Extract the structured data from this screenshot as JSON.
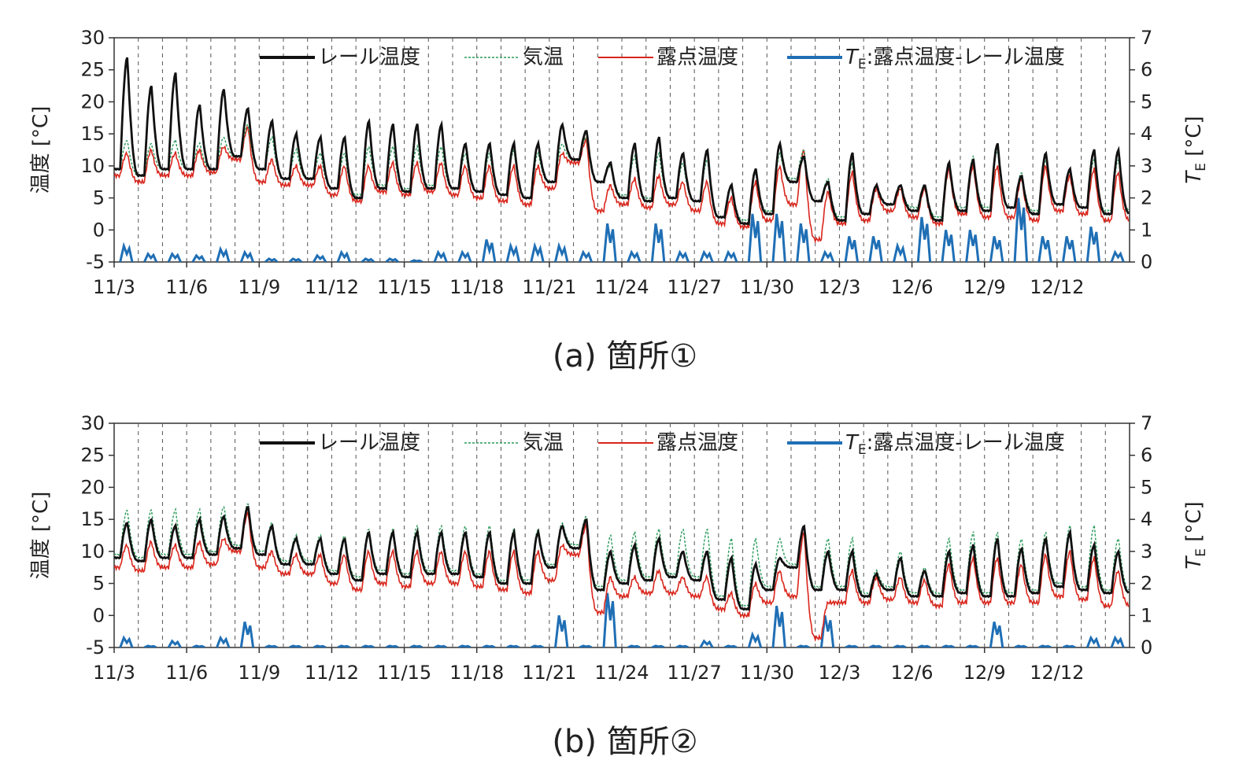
{
  "chart_data": [
    {
      "type": "line",
      "caption": "(a) 箇所①",
      "ylabel_left": "温度 [°C]",
      "ylabel_right": "T_E [°C]",
      "ylim_left": [
        -5,
        30
      ],
      "ylim_right": [
        0,
        7
      ],
      "yticks_left": [
        "30",
        "25",
        "20",
        "15",
        "10",
        "5",
        "0",
        "-5"
      ],
      "yticks_right": [
        "7",
        "6",
        "5",
        "4",
        "3",
        "2",
        "1",
        "0"
      ],
      "x_ticklabels": [
        "11/3",
        "11/6",
        "11/9",
        "11/12",
        "11/15",
        "11/18",
        "11/21",
        "11/24",
        "11/27",
        "11/30",
        "12/3",
        "12/6",
        "12/9",
        "12/12"
      ],
      "x_start": "11/3",
      "x_end": "12/14",
      "grid": "vertical dashed lines at each day",
      "legend_placement": "top",
      "legend": [
        {
          "label": "レール温度",
          "color": "#111111",
          "style": "solid-thick"
        },
        {
          "label": "気温",
          "color": "#2a9a5a",
          "style": "dashed"
        },
        {
          "label": "露点温度",
          "color": "#d9261c",
          "style": "solid"
        },
        {
          "label_italic": "T",
          "label_sub": "E",
          "label_rest": ":露点温度-レール温度",
          "color": "#1f6fb5",
          "style": "solid-thick"
        }
      ],
      "series": [
        {
          "name": "レール温度",
          "axis": "left",
          "daily_max": [
            27,
            22.5,
            24.5,
            19.5,
            22,
            19,
            17,
            15,
            14.5,
            14.5,
            17,
            16.5,
            16.5,
            16.5,
            13.5,
            13.5,
            13.5,
            13.5,
            16.5,
            15.5,
            10.5,
            13.5,
            14.5,
            12,
            12.5,
            7,
            9.5,
            13.5,
            11.5,
            7.5,
            12,
            7,
            7,
            7,
            10.5,
            11,
            13.5,
            8.5,
            12,
            9.5,
            12.5,
            12.5
          ],
          "daily_min": [
            9.5,
            8.5,
            9.5,
            9.5,
            9.5,
            11.5,
            9.5,
            8.0,
            8.0,
            6.5,
            5.0,
            6.5,
            6.0,
            6.5,
            6.5,
            6.0,
            5.5,
            5.0,
            7.5,
            11.0,
            7.5,
            5.0,
            4.5,
            5.0,
            4.5,
            2.0,
            1.0,
            2.5,
            7.5,
            4.5,
            1.5,
            2.5,
            4.0,
            3.0,
            1.5,
            3.0,
            3.0,
            3.5,
            2.5,
            4.0,
            3.5,
            2.5
          ]
        },
        {
          "name": "気温",
          "axis": "left",
          "daily_max": [
            14,
            13.5,
            14,
            13.5,
            14.5,
            16.5,
            14.5,
            12.5,
            12,
            12,
            13,
            13,
            13,
            13,
            12,
            12,
            12.5,
            12,
            13.5,
            14.5,
            10,
            11.5,
            12,
            10.5,
            11,
            7,
            9,
            12,
            12.5,
            8,
            10.5,
            7,
            7,
            7,
            10.5,
            11.5,
            12.5,
            9,
            11,
            9.5,
            11,
            11
          ],
          "daily_min": [
            9.5,
            8.5,
            9.5,
            9.5,
            9.5,
            11.5,
            9.5,
            8.0,
            8.0,
            6.5,
            5.5,
            7.0,
            6.5,
            7.0,
            6.5,
            6.0,
            5.5,
            5.0,
            7.5,
            11.0,
            7.5,
            5.5,
            5.0,
            5.0,
            4.5,
            2.0,
            1.5,
            3.0,
            8.0,
            4.5,
            2.0,
            2.5,
            4.0,
            3.5,
            2.0,
            3.5,
            3.5,
            3.5,
            3.0,
            4.0,
            3.5,
            3.0
          ]
        },
        {
          "name": "露点温度",
          "axis": "left",
          "daily_max": [
            12,
            12.5,
            12,
            12.5,
            13,
            16,
            11,
            10,
            10,
            10,
            10,
            10.5,
            10.5,
            10.5,
            10,
            10,
            10,
            10,
            12,
            14,
            7,
            8,
            8.5,
            7.5,
            7.5,
            5,
            7.5,
            10,
            12.5,
            6,
            9,
            6.5,
            6.5,
            6.5,
            9.5,
            10,
            10,
            8,
            10,
            8.5,
            9.5,
            9
          ],
          "daily_min": [
            8.5,
            7.5,
            8.5,
            8.5,
            9.0,
            11.0,
            7.5,
            7.0,
            7.0,
            5.5,
            4.5,
            6.0,
            5.5,
            6.0,
            5.5,
            5.0,
            4.5,
            4.0,
            6.5,
            10.5,
            3.0,
            4.0,
            3.5,
            4.0,
            3.0,
            1.0,
            0.5,
            1.5,
            4.0,
            -1.5,
            1.0,
            1.5,
            3.0,
            2.0,
            1.0,
            2.5,
            2.0,
            2.0,
            1.5,
            3.0,
            2.5,
            1.5
          ]
        },
        {
          "name": "T_E:露点温度-レール温度",
          "axis": "right",
          "daily_peak": [
            0.5,
            0.25,
            0.25,
            0.2,
            0.4,
            0.3,
            0.1,
            0.1,
            0.2,
            0.3,
            0.1,
            0.1,
            0.05,
            0.3,
            0.3,
            0.7,
            0.5,
            0.5,
            0.5,
            0.3,
            1.2,
            0.3,
            1.2,
            0.3,
            0.3,
            0.3,
            1.5,
            1.5,
            1.2,
            0.3,
            0.8,
            0.8,
            0.5,
            1.4,
            1.0,
            1.0,
            0.8,
            2.0,
            0.8,
            0.8,
            1.1,
            0.3
          ]
        }
      ]
    },
    {
      "type": "line",
      "caption": "(b) 箇所②",
      "ylabel_left": "温度 [°C]",
      "ylabel_right": "T_E [°C]",
      "ylim_left": [
        -5,
        30
      ],
      "ylim_right": [
        0,
        7
      ],
      "yticks_left": [
        "30",
        "25",
        "20",
        "15",
        "10",
        "5",
        "0",
        "-5"
      ],
      "yticks_right": [
        "7",
        "6",
        "5",
        "4",
        "3",
        "2",
        "1",
        "0"
      ],
      "x_ticklabels": [
        "11/3",
        "11/6",
        "11/9",
        "11/12",
        "11/15",
        "11/18",
        "11/21",
        "11/24",
        "11/27",
        "11/30",
        "12/3",
        "12/6",
        "12/9",
        "12/12"
      ],
      "x_start": "11/3",
      "x_end": "12/14",
      "grid": "vertical dashed lines at each day",
      "legend_placement": "top",
      "legend": [
        {
          "label": "レール温度",
          "color": "#111111",
          "style": "solid-thick"
        },
        {
          "label": "気温",
          "color": "#2a9a5a",
          "style": "dashed"
        },
        {
          "label": "露点温度",
          "color": "#d9261c",
          "style": "solid"
        },
        {
          "label_italic": "T",
          "label_sub": "E",
          "label_rest": ":露点温度-レール温度",
          "color": "#1f6fb5",
          "style": "solid-thick"
        }
      ],
      "series": [
        {
          "name": "レール温度",
          "axis": "left",
          "daily_max": [
            14.5,
            15,
            14,
            15,
            15.5,
            17,
            14,
            12,
            12,
            12,
            13,
            13,
            13,
            13,
            13,
            13,
            13,
            13,
            14,
            15,
            10,
            11,
            12,
            10,
            10,
            9,
            8,
            9,
            14,
            10,
            10,
            6.5,
            9,
            7,
            10,
            11,
            12,
            10.5,
            12,
            13,
            11,
            10
          ],
          "daily_min": [
            9.0,
            8.5,
            9.0,
            9.0,
            9.5,
            10.5,
            9.5,
            8.0,
            8.0,
            6.5,
            5.5,
            6.5,
            6.0,
            6.5,
            6.5,
            6.0,
            5.0,
            5.0,
            7.5,
            10.5,
            4.0,
            5.0,
            5.5,
            6.0,
            5.5,
            2.5,
            1.0,
            4.0,
            7.5,
            4.0,
            4.0,
            3.0,
            4.0,
            3.0,
            3.0,
            3.5,
            3.0,
            3.0,
            3.5,
            4.5,
            4.0,
            3.5
          ]
        },
        {
          "name": "気温",
          "axis": "left",
          "daily_max": [
            16.5,
            16.5,
            16.5,
            16.5,
            17,
            17.5,
            14.5,
            12.5,
            12.5,
            12.5,
            13.5,
            13.5,
            14,
            14,
            14,
            14,
            13.5,
            13.5,
            14.5,
            15.5,
            12.5,
            13,
            13.5,
            13.5,
            13.5,
            12,
            12,
            12,
            14,
            12,
            12,
            7,
            10,
            7.5,
            12,
            13,
            13,
            12,
            13,
            14,
            14,
            12
          ],
          "daily_min": [
            9.5,
            9.0,
            9.5,
            9.5,
            10.0,
            11.0,
            10.0,
            8.5,
            8.5,
            7.0,
            6.0,
            7.0,
            6.5,
            7.0,
            7.0,
            6.5,
            5.5,
            5.5,
            8.0,
            11.0,
            4.5,
            5.5,
            6.0,
            6.5,
            6.0,
            3.0,
            1.5,
            4.5,
            8.0,
            4.5,
            4.5,
            3.5,
            4.5,
            3.5,
            3.5,
            4.0,
            3.5,
            3.5,
            4.0,
            5.0,
            4.5,
            4.0
          ]
        },
        {
          "name": "露点温度",
          "axis": "left",
          "daily_max": [
            11,
            11.5,
            11,
            11.5,
            12,
            16,
            10,
            9.5,
            9.5,
            9.5,
            10,
            10,
            10,
            10,
            10,
            10,
            10,
            10,
            11,
            14,
            6,
            6,
            7,
            6,
            6,
            3.5,
            5,
            7,
            13,
            2,
            7,
            6,
            6,
            5.5,
            8,
            9,
            9,
            8,
            9.5,
            10,
            9,
            7
          ],
          "daily_min": [
            7.5,
            7.0,
            7.5,
            7.5,
            8.0,
            10.0,
            7.5,
            6.5,
            6.5,
            5.0,
            4.0,
            5.0,
            4.5,
            5.0,
            5.0,
            4.5,
            4.0,
            3.5,
            5.5,
            9.5,
            0.5,
            3.0,
            3.5,
            3.5,
            3.0,
            1.0,
            0.0,
            2.0,
            3.0,
            -3.5,
            2.0,
            2.0,
            2.5,
            2.0,
            1.5,
            2.0,
            2.0,
            2.0,
            2.0,
            3.0,
            2.5,
            1.5
          ]
        },
        {
          "name": "T_E:露点温度-レール温度",
          "axis": "right",
          "daily_peak": [
            0.3,
            0.05,
            0.2,
            0.05,
            0.3,
            0.8,
            0.05,
            0.05,
            0.05,
            0.05,
            0.05,
            0.05,
            0.05,
            0.05,
            0.05,
            0.05,
            0.05,
            0.05,
            1.0,
            0.05,
            1.7,
            0.05,
            0.05,
            0.05,
            0.2,
            0.05,
            0.4,
            1.3,
            0.05,
            1.0,
            0.05,
            0.05,
            0.05,
            0.05,
            0.05,
            0.05,
            0.8,
            0.05,
            0.05,
            0.05,
            0.3,
            0.3
          ]
        }
      ]
    }
  ]
}
